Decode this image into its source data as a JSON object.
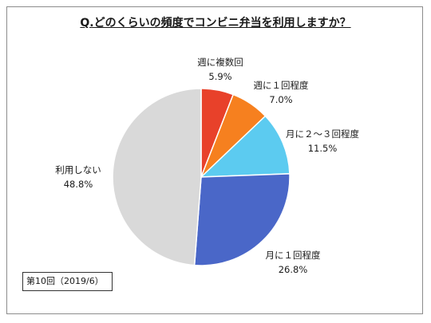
{
  "page": {
    "title": "Q.どのくらいの頻度でコンビニ弁当を利用しますか？",
    "footnote": "第10回（2019/6）"
  },
  "chart_data": {
    "type": "pie",
    "title": "Q.どのくらいの頻度でコンビニ弁当を利用しますか？",
    "start_angle_deg": 0,
    "direction": "clockwise",
    "slices": [
      {
        "label": "週に複数回",
        "value": 5.9,
        "value_label": "5.9%",
        "color": "#e8412a"
      },
      {
        "label": "週に１回程度",
        "value": 7.0,
        "value_label": "7.0%",
        "color": "#f6801f"
      },
      {
        "label": "月に２～３回程度",
        "value": 11.5,
        "value_label": "11.5%",
        "color": "#5ccbf0"
      },
      {
        "label": "月に１回程度",
        "value": 26.8,
        "value_label": "26.8%",
        "color": "#4a67c8"
      },
      {
        "label": "利用しない",
        "value": 48.8,
        "value_label": "48.8%",
        "color": "#d9d9d9"
      }
    ]
  }
}
